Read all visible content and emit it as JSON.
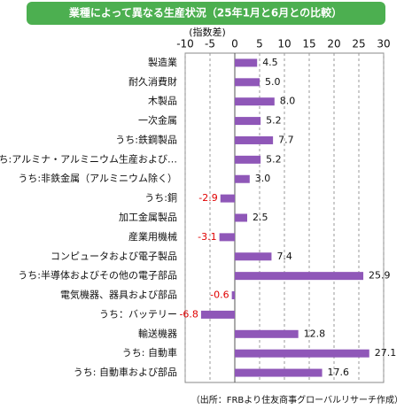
{
  "chart_data": {
    "type": "hbar",
    "title": "業種によって異なる生産状況（25年1月と6月との比較）",
    "y_axis_label": "(指数差)",
    "source": "（出所：FRBより住友商事グローバルリサーチ作成）",
    "categories": [
      "製造業",
      "耐久消費財",
      "木製品",
      "一次金属",
      "うち:鉄鋼製品",
      "うち:アルミナ・アルミニウム生産および…",
      "うち:非鉄金属（アルミニウム除く）",
      "うち:銅",
      "加工金属製品",
      "産業用機械",
      "コンピュータおよび電子製品",
      "うち:半導体およびその他の電子部品",
      "電気機器、器具および部品",
      "うち：バッテリー",
      "輸送機器",
      "うち: 自動車",
      "うち: 自動車および部品"
    ],
    "values": [
      4.5,
      5.0,
      8.0,
      5.2,
      7.7,
      5.2,
      3.0,
      -2.9,
      2.5,
      -3.1,
      7.4,
      25.9,
      -0.6,
      -6.8,
      12.8,
      27.1,
      17.6
    ],
    "value_labels": [
      "4.5",
      "5.0",
      "8.0",
      "5.2",
      "7.7",
      "5.2",
      "3.0",
      "-2.9",
      "2.5",
      "-3.1",
      "7.4",
      "25.9",
      "-0.6",
      "-6.8",
      "12.8",
      "27.1",
      "17.6"
    ],
    "color": "#8f57b8",
    "negative_label_color": "#e00000",
    "title_color": "#4caf50",
    "xlim": [
      -10,
      30
    ],
    "xticks": [
      -10,
      -5,
      0,
      5,
      10,
      15,
      20,
      25,
      30
    ],
    "grid": true
  }
}
